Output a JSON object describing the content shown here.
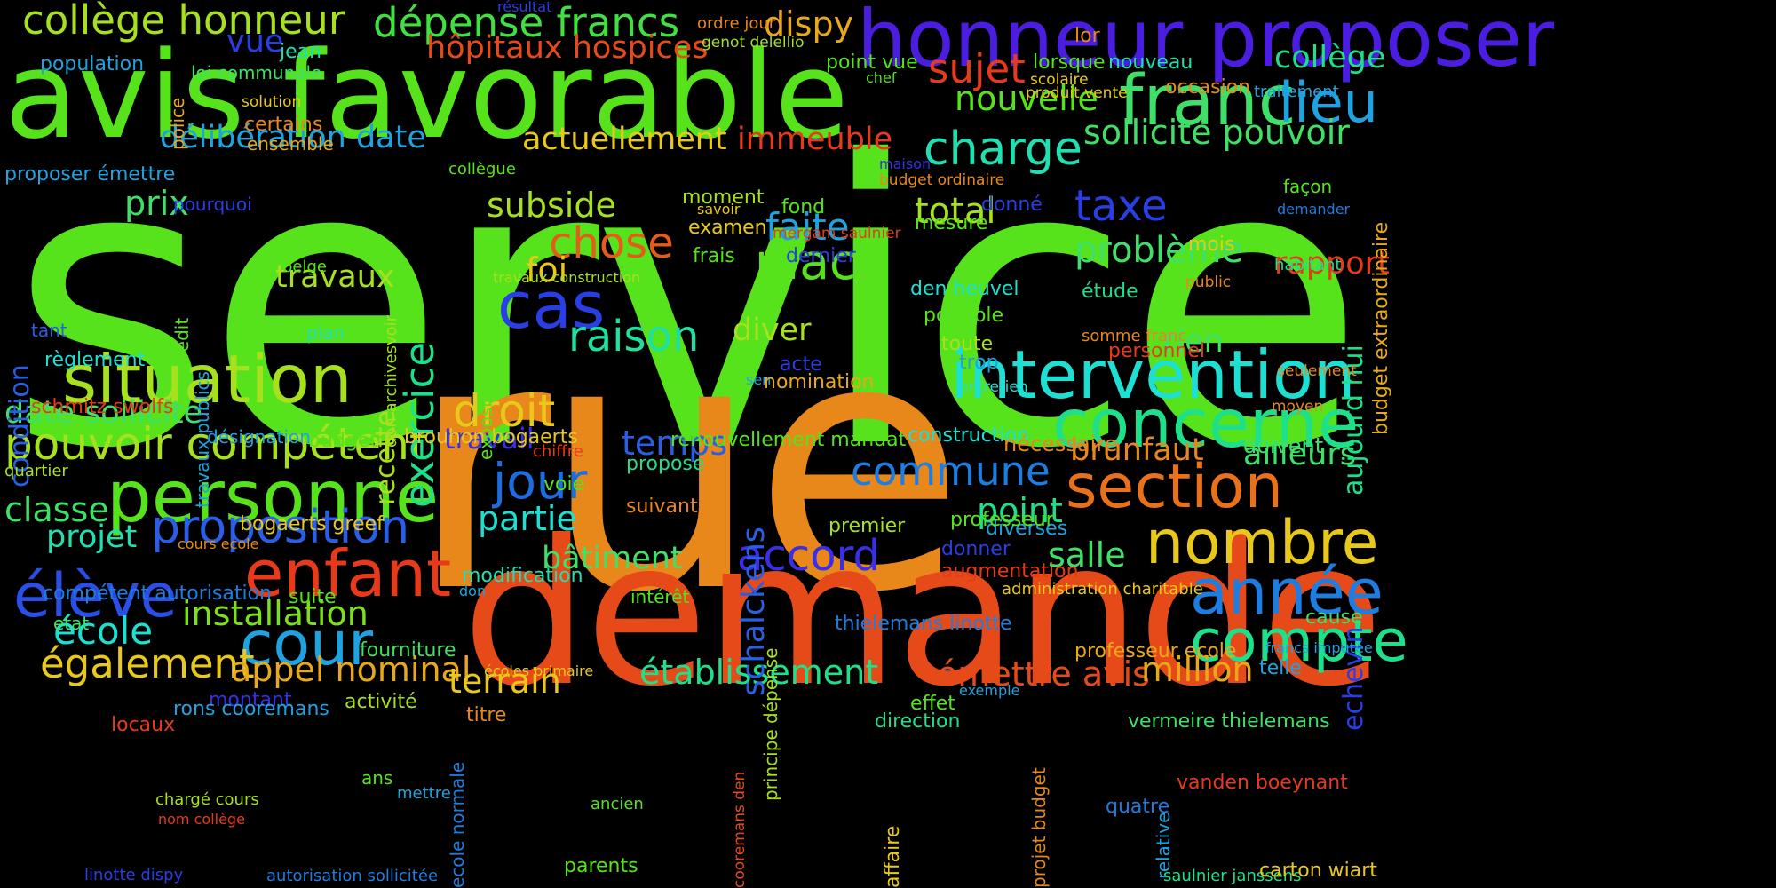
{
  "cloud": {
    "background": "#000000",
    "words": [
      {
        "text": "service",
        "color": "#56e31c"
      },
      {
        "text": "rue",
        "color": "#e8871a"
      },
      {
        "text": "demande",
        "color": "#e64a19"
      },
      {
        "text": "avis favorable",
        "color": "#56e31c"
      },
      {
        "text": "honneur proposer",
        "color": "#4a1de0"
      },
      {
        "text": "franc",
        "color": "#3fe067"
      },
      {
        "text": "lieu",
        "color": "#1ea3e0"
      },
      {
        "text": "situation",
        "color": "#a6e01e"
      },
      {
        "text": "intervention",
        "color": "#1ee0d2"
      },
      {
        "text": "concerne",
        "color": "#1ee08a"
      },
      {
        "text": "personne",
        "color": "#56e31c"
      },
      {
        "text": "enfant",
        "color": "#e63a1a"
      },
      {
        "text": "élève",
        "color": "#2a4ee6"
      },
      {
        "text": "cour",
        "color": "#1ea3e0"
      },
      {
        "text": "section",
        "color": "#e8711a"
      },
      {
        "text": "nombre",
        "color": "#e8c81a"
      },
      {
        "text": "année",
        "color": "#1e7de0"
      },
      {
        "text": "compte",
        "color": "#1ee08a"
      },
      {
        "text": "collège honneur",
        "color": "#a6e01e"
      },
      {
        "text": "dépense francs",
        "color": "#3fe03f"
      },
      {
        "text": "pouvoir compétent",
        "color": "#a6e01e"
      },
      {
        "text": "proposition",
        "color": "#2a5ee6"
      },
      {
        "text": "cas",
        "color": "#2a3ee6"
      },
      {
        "text": "charge",
        "color": "#1ee0b0"
      },
      {
        "text": "place",
        "color": "#56e31c"
      },
      {
        "text": "raison",
        "color": "#1ee0a0"
      },
      {
        "text": "jour",
        "color": "#1e6de0"
      },
      {
        "text": "droit",
        "color": "#e8c81a"
      },
      {
        "text": "chose",
        "color": "#e65a1a"
      },
      {
        "text": "accord",
        "color": "#3a2ee6"
      },
      {
        "text": "commune",
        "color": "#1e7de0"
      },
      {
        "text": "exercice",
        "color": "#1ee08a"
      },
      {
        "text": "installation",
        "color": "#7de01e"
      },
      {
        "text": "également",
        "color": "#e8c81a"
      },
      {
        "text": "école",
        "color": "#1ee0d2"
      },
      {
        "text": "appel nominal",
        "color": "#e8a81a"
      },
      {
        "text": "établissement",
        "color": "#1ee08a"
      },
      {
        "text": "émettre avis",
        "color": "#e64a19"
      },
      {
        "text": "terrain",
        "color": "#e8c81a"
      },
      {
        "text": "million",
        "color": "#e8a81a"
      },
      {
        "text": "classe",
        "color": "#3fe067"
      },
      {
        "text": "projet",
        "color": "#1ee0b0"
      },
      {
        "text": "taxe",
        "color": "#2a3ee6"
      },
      {
        "text": "total",
        "color": "#a6e01e"
      },
      {
        "text": "problème",
        "color": "#3fe067"
      },
      {
        "text": "rapport",
        "color": "#e63a1a"
      },
      {
        "text": "subside",
        "color": "#a6e01e"
      },
      {
        "text": "actuellement",
        "color": "#e8c81a"
      },
      {
        "text": "délibération date",
        "color": "#1ea3e0"
      },
      {
        "text": "sujet",
        "color": "#e63a1a"
      },
      {
        "text": "nouvelle",
        "color": "#56e31c"
      },
      {
        "text": "immeuble",
        "color": "#e63a1a"
      },
      {
        "text": "sollicite pouvoir",
        "color": "#3fe067"
      },
      {
        "text": "collège",
        "color": "#1ee08a"
      },
      {
        "text": "hôpitaux hospices",
        "color": "#e64a19"
      },
      {
        "text": "dispy",
        "color": "#e8a81a"
      },
      {
        "text": "vue",
        "color": "#2a3ee6"
      },
      {
        "text": "prix",
        "color": "#3fe067"
      },
      {
        "text": "travaux",
        "color": "#a6e01e"
      },
      {
        "text": "foi",
        "color": "#e8c81a"
      },
      {
        "text": "faite",
        "color": "#1ea3e0"
      },
      {
        "text": "brunfaut",
        "color": "#e8871a"
      },
      {
        "text": "ailleurs",
        "color": "#3fe067"
      },
      {
        "text": "partie",
        "color": "#1ee0d2"
      },
      {
        "text": "temps",
        "color": "#2a5ee6"
      },
      {
        "text": "bâtiment",
        "color": "#3fe067"
      },
      {
        "text": "point",
        "color": "#1ee08a"
      },
      {
        "text": "salle",
        "color": "#3fe067"
      },
      {
        "text": "diverses",
        "color": "#1ea3e0"
      },
      {
        "text": "diver",
        "color": "#a6e01e"
      },
      {
        "text": "rien",
        "color": "#3fe067"
      },
      {
        "text": "travail",
        "color": "#3a2ee6"
      },
      {
        "text": "date sollicite",
        "color": "#3fe067"
      },
      {
        "text": "fourniture",
        "color": "#3fe067"
      },
      {
        "text": "schalckens",
        "color": "#2a5ee6"
      },
      {
        "text": "recette",
        "color": "#a6e01e"
      },
      {
        "text": "aujourd hui",
        "color": "#1ee08a"
      },
      {
        "text": "echevin",
        "color": "#2a3ee6"
      },
      {
        "text": "condition",
        "color": "#2a5ee6"
      },
      {
        "text": "budget extraordinaire",
        "color": "#e8a81a"
      },
      {
        "text": "population",
        "color": "#1ea3e0"
      },
      {
        "text": "jean",
        "color": "#1ee0b0"
      },
      {
        "text": "loi communale",
        "color": "#3fe067"
      },
      {
        "text": "police",
        "color": "#e8a81a"
      },
      {
        "text": "solution",
        "color": "#e8c81a"
      },
      {
        "text": "certains",
        "color": "#e8871a"
      },
      {
        "text": "ensemble",
        "color": "#e8a81a"
      },
      {
        "text": "proposer émettre",
        "color": "#1ea3e0"
      },
      {
        "text": "pourquoi",
        "color": "#2a3ee6"
      },
      {
        "text": "collègue",
        "color": "#56e31c"
      },
      {
        "text": "règlement",
        "color": "#1ee0d2"
      },
      {
        "text": "tant",
        "color": "#2a5ee6"
      },
      {
        "text": "crédit",
        "color": "#56e31c"
      },
      {
        "text": "travaux publics",
        "color": "#1ea3e0"
      },
      {
        "text": "plan",
        "color": "#1ee0b0"
      },
      {
        "text": "belge",
        "color": "#56e31c"
      },
      {
        "text": "don archivesvoir",
        "color": "#a6e01e"
      },
      {
        "text": "exposition",
        "color": "#56e31c"
      },
      {
        "text": "schmitz swolfs",
        "color": "#e63a1a"
      },
      {
        "text": "désignation",
        "color": "#1ea3e0"
      },
      {
        "text": "budget",
        "color": "#56e31c"
      },
      {
        "text": "quartier",
        "color": "#a6e01e"
      },
      {
        "text": "brouhon bogaerts",
        "color": "#e8c81a"
      },
      {
        "text": "renouvellement mandat",
        "color": "#56e31c"
      },
      {
        "text": "construction",
        "color": "#1ee0d2"
      },
      {
        "text": "nécessaire",
        "color": "#e8871a"
      },
      {
        "text": "doivent",
        "color": "#3fe067"
      },
      {
        "text": "chiffre",
        "color": "#e63a1a"
      },
      {
        "text": "propose",
        "color": "#1ee08a"
      },
      {
        "text": "voie",
        "color": "#56e31c"
      },
      {
        "text": "suivant",
        "color": "#e8871a"
      },
      {
        "text": "premier",
        "color": "#a6e01e"
      },
      {
        "text": "professeur",
        "color": "#56e31c"
      },
      {
        "text": "donner",
        "color": "#2a3ee6"
      },
      {
        "text": "augmentation",
        "color": "#e63a1a"
      },
      {
        "text": "administration charitable",
        "color": "#e8c81a"
      },
      {
        "text": "bogaerts greef",
        "color": "#e8c81a"
      },
      {
        "text": "cours ecole",
        "color": "#e8871a"
      },
      {
        "text": "compétent autorisation",
        "color": "#1e7de0"
      },
      {
        "text": "suite",
        "color": "#56e31c"
      },
      {
        "text": "etat",
        "color": "#3fe067"
      },
      {
        "text": "modification",
        "color": "#1ee0b0"
      },
      {
        "text": "don",
        "color": "#1ea3e0"
      },
      {
        "text": "intérêt",
        "color": "#56e31c"
      },
      {
        "text": "thielemans linotte",
        "color": "#1e7de0"
      },
      {
        "text": "professeur ecole",
        "color": "#e8a81a"
      },
      {
        "text": "cause",
        "color": "#3fe067"
      },
      {
        "text": "telle",
        "color": "#1ea3e0"
      },
      {
        "text": "francs imputée",
        "color": "#1ea3e0"
      },
      {
        "text": "écoles primaire",
        "color": "#e8c81a"
      },
      {
        "text": "montant",
        "color": "#3a2ee6"
      },
      {
        "text": "rons cooremans",
        "color": "#1ea3e0"
      },
      {
        "text": "activité",
        "color": "#a6e01e"
      },
      {
        "text": "titre",
        "color": "#e8871a"
      },
      {
        "text": "effet",
        "color": "#56e31c"
      },
      {
        "text": "exemple",
        "color": "#1ea3e0"
      },
      {
        "text": "direction",
        "color": "#1ee08a"
      },
      {
        "text": "vermeire thielemans",
        "color": "#3fe067"
      },
      {
        "text": "locaux",
        "color": "#e63a1a"
      },
      {
        "text": "ans",
        "color": "#56e31c"
      },
      {
        "text": "vanden boeynant",
        "color": "#e63a1a"
      },
      {
        "text": "mettre",
        "color": "#1ea3e0"
      },
      {
        "text": "chargé cours",
        "color": "#a6e01e"
      },
      {
        "text": "nom collège",
        "color": "#e63a1a"
      },
      {
        "text": "ancien",
        "color": "#56e31c"
      },
      {
        "text": "quatre",
        "color": "#1e7de0"
      },
      {
        "text": "relative",
        "color": "#1ea3e0"
      },
      {
        "text": "linotte dispy",
        "color": "#2a3ee6"
      },
      {
        "text": "autorisation sollicitée",
        "color": "#1e7de0"
      },
      {
        "text": "parents",
        "color": "#56e31c"
      },
      {
        "text": "saulnier janssens",
        "color": "#1ee08a"
      },
      {
        "text": "carton wiart",
        "color": "#e8c81a"
      },
      {
        "text": "cooremans den",
        "color": "#e64a19"
      },
      {
        "text": "affaire",
        "color": "#e8c81a"
      },
      {
        "text": "projet budget",
        "color": "#e8871a"
      },
      {
        "text": "ecole normale",
        "color": "#1e7de0"
      },
      {
        "text": "principe dépense",
        "color": "#a6e01e"
      },
      {
        "text": "point vue",
        "color": "#56e31c"
      },
      {
        "text": "chef",
        "color": "#56e31c"
      },
      {
        "text": "lorsque",
        "color": "#56e31c"
      },
      {
        "text": "nouveau",
        "color": "#1ee0b0"
      },
      {
        "text": "scolaire",
        "color": "#e8c81a"
      },
      {
        "text": "produit vente",
        "color": "#e8c81a"
      },
      {
        "text": "lor",
        "color": "#e8871a"
      },
      {
        "text": "occasion",
        "color": "#e8871a"
      },
      {
        "text": "traitement",
        "color": "#1ea3e0"
      },
      {
        "text": "ordre jour",
        "color": "#e8871a"
      },
      {
        "text": "genot delellio",
        "color": "#a6e01e"
      },
      {
        "text": "résultat",
        "color": "#2a3ee6"
      },
      {
        "text": "façon",
        "color": "#56e31c"
      },
      {
        "text": "demander",
        "color": "#1e7de0"
      },
      {
        "text": "moment",
        "color": "#a6e01e"
      },
      {
        "text": "savoir",
        "color": "#e8c81a"
      },
      {
        "text": "fond",
        "color": "#56e31c"
      },
      {
        "text": "donné",
        "color": "#2a3ee6"
      },
      {
        "text": "mesure",
        "color": "#56e31c"
      },
      {
        "text": "examen",
        "color": "#e8c81a"
      },
      {
        "text": "mergam saulnier",
        "color": "#e63a1a"
      },
      {
        "text": "frais",
        "color": "#56e31c"
      },
      {
        "text": "dernier",
        "color": "#2a3ee6"
      },
      {
        "text": "mois",
        "color": "#e8c81a"
      },
      {
        "text": "habitant",
        "color": "#1ee08a"
      },
      {
        "text": "public",
        "color": "#e8871a"
      },
      {
        "text": "étude",
        "color": "#1ee08a"
      },
      {
        "text": "somme franc",
        "color": "#e8871a"
      },
      {
        "text": "den heuvel",
        "color": "#1ee0d2"
      },
      {
        "text": "possible",
        "color": "#56e31c"
      },
      {
        "text": "personnel",
        "color": "#e63a1a"
      },
      {
        "text": "toute",
        "color": "#a6e01e"
      },
      {
        "text": "trop",
        "color": "#1ea3e0"
      },
      {
        "text": "acte",
        "color": "#2a3ee6"
      },
      {
        "text": "sen",
        "color": "#1ea3e0"
      },
      {
        "text": "nomination",
        "color": "#e8a81a"
      },
      {
        "text": "entretien",
        "color": "#1ee0d2"
      },
      {
        "text": "seulement",
        "color": "#e8871a"
      },
      {
        "text": "moyen",
        "color": "#e8871a"
      },
      {
        "text": "maison",
        "color": "#3a2ee6"
      },
      {
        "text": "budget ordinaire",
        "color": "#e8871a"
      },
      {
        "text": "travaux construction",
        "color": "#a6e01e"
      }
    ]
  }
}
